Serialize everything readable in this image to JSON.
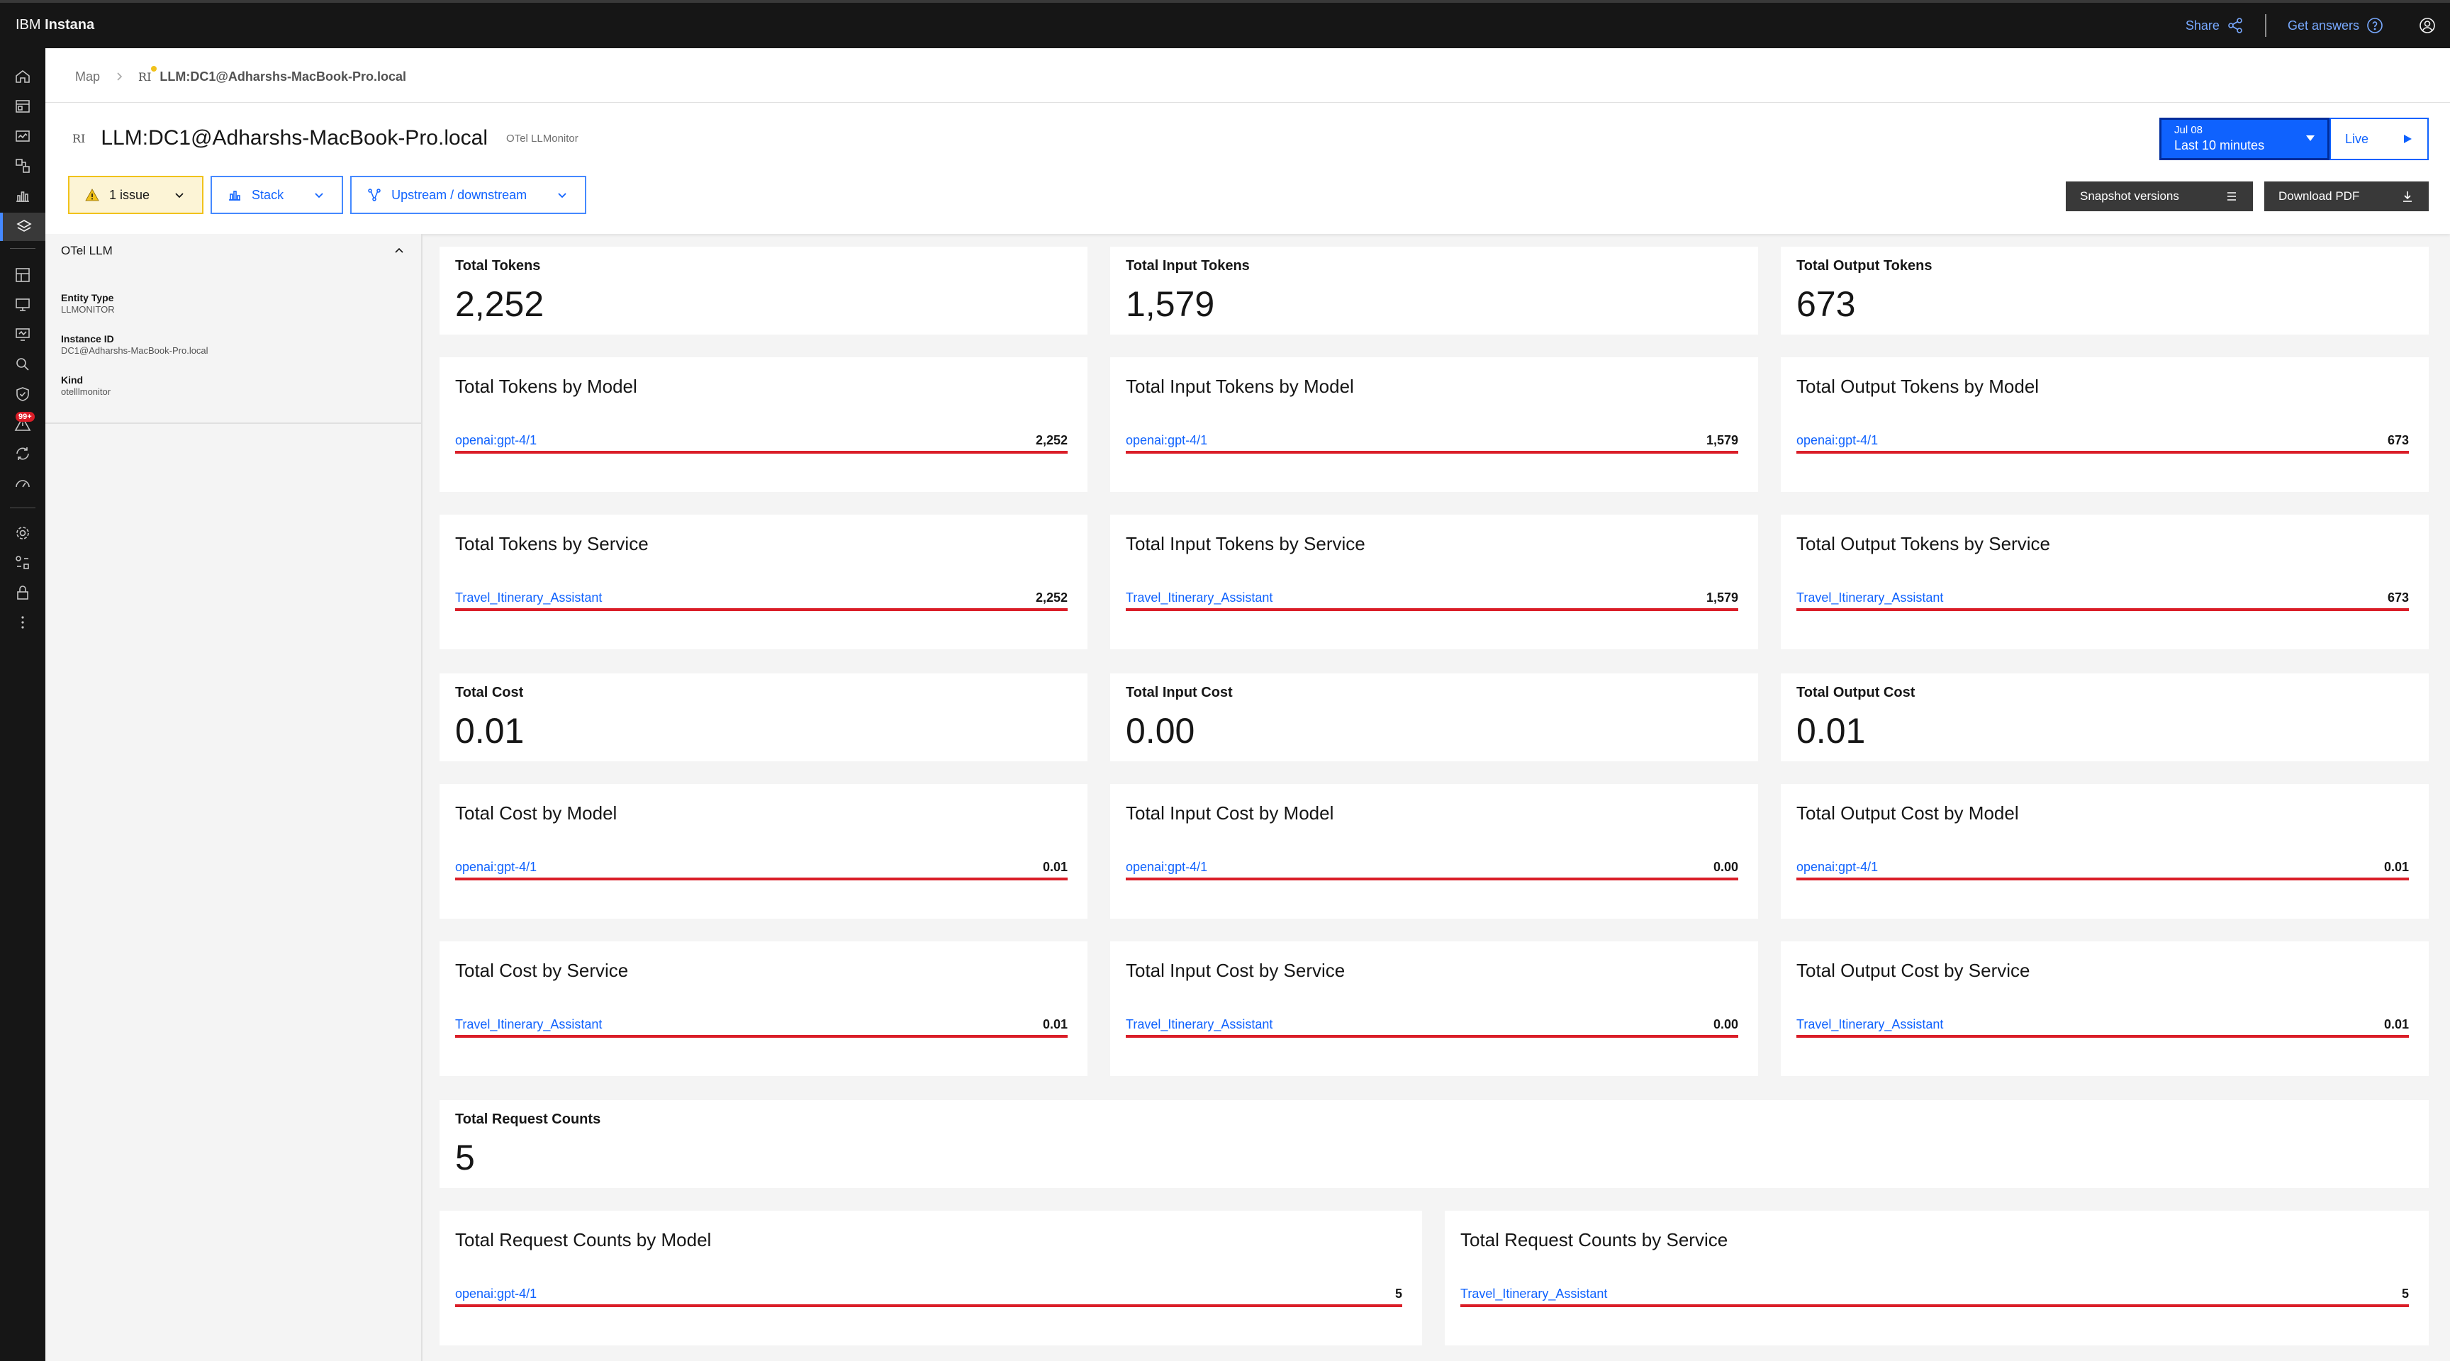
{
  "app": {
    "brand_prefix": "IBM",
    "brand_name": "Instana"
  },
  "topbar": {
    "share_label": "Share",
    "help_label": "Get answers"
  },
  "nav": {
    "alerts_badge": "99+"
  },
  "breadcrumb": {
    "root": "Map",
    "entity_prefix": "RI",
    "current": "LLM:DC1@Adharshs-MacBook-Pro.local"
  },
  "header": {
    "entity_prefix": "RI",
    "title": "LLM:DC1@Adharshs-MacBook-Pro.local",
    "subtitle": "OTel LLMonitor"
  },
  "chips": {
    "issues": "1 issue",
    "stack": "Stack",
    "updown": "Upstream / downstream"
  },
  "time": {
    "date": "Jul 08",
    "range": "Last 10 minutes",
    "live": "Live"
  },
  "buttons": {
    "snapshot": "Snapshot versions",
    "pdf": "Download PDF"
  },
  "sidebar": {
    "title": "OTel LLM",
    "fields": [
      {
        "key": "Entity Type",
        "value": "LLMONITOR"
      },
      {
        "key": "Instance ID",
        "value": "DC1@Adharshs-MacBook-Pro.local"
      },
      {
        "key": "Kind",
        "value": "otelllmonitor"
      }
    ]
  },
  "kpis": {
    "total_tokens": {
      "label": "Total Tokens",
      "value": "2,252"
    },
    "input_tokens": {
      "label": "Total Input Tokens",
      "value": "1,579"
    },
    "output_tokens": {
      "label": "Total Output Tokens",
      "value": "673"
    },
    "total_cost": {
      "label": "Total Cost",
      "value": "0.01"
    },
    "input_cost": {
      "label": "Total Input Cost",
      "value": "0.00"
    },
    "output_cost": {
      "label": "Total Output Cost",
      "value": "0.01"
    },
    "requests": {
      "label": "Total Request Counts",
      "value": "5"
    }
  },
  "breakdowns": {
    "tokens_model": {
      "label": "Total Tokens by Model",
      "name": "openai:gpt-4/1",
      "value": "2,252",
      "fill": 1.0
    },
    "input_tokens_model": {
      "label": "Total Input Tokens by Model",
      "name": "openai:gpt-4/1",
      "value": "1,579",
      "fill": 1.0
    },
    "output_tokens_model": {
      "label": "Total Output Tokens by Model",
      "name": "openai:gpt-4/1",
      "value": "673",
      "fill": 1.0
    },
    "tokens_service": {
      "label": "Total Tokens by Service",
      "name": "Travel_Itinerary_Assistant",
      "value": "2,252",
      "fill": 1.0
    },
    "input_tokens_service": {
      "label": "Total Input Tokens by Service",
      "name": "Travel_Itinerary_Assistant",
      "value": "1,579",
      "fill": 1.0
    },
    "output_tokens_service": {
      "label": "Total Output Tokens by Service",
      "name": "Travel_Itinerary_Assistant",
      "value": "673",
      "fill": 1.0
    },
    "cost_model": {
      "label": "Total Cost by Model",
      "name": "openai:gpt-4/1",
      "value": "0.01",
      "fill": 1.0
    },
    "input_cost_model": {
      "label": "Total Input Cost by Model",
      "name": "openai:gpt-4/1",
      "value": "0.00",
      "fill": 1.0
    },
    "output_cost_model": {
      "label": "Total Output Cost by Model",
      "name": "openai:gpt-4/1",
      "value": "0.01",
      "fill": 1.0
    },
    "cost_service": {
      "label": "Total Cost by Service",
      "name": "Travel_Itinerary_Assistant",
      "value": "0.01",
      "fill": 1.0
    },
    "input_cost_service": {
      "label": "Total Input Cost by Service",
      "name": "Travel_Itinerary_Assistant",
      "value": "0.00",
      "fill": 1.0
    },
    "output_cost_service": {
      "label": "Total Output Cost by Service",
      "name": "Travel_Itinerary_Assistant",
      "value": "0.01",
      "fill": 1.0
    },
    "requests_model": {
      "label": "Total Request Counts by Model",
      "name": "openai:gpt-4/1",
      "value": "5",
      "fill": 1.0
    },
    "requests_service": {
      "label": "Total Request Counts by Service",
      "name": "Travel_Itinerary_Assistant",
      "value": "5",
      "fill": 1.0
    }
  },
  "colors": {
    "accent": "#0f62fe",
    "bar": "#da1e28",
    "warning": "#f1c21b",
    "header_bg": "#161616"
  }
}
